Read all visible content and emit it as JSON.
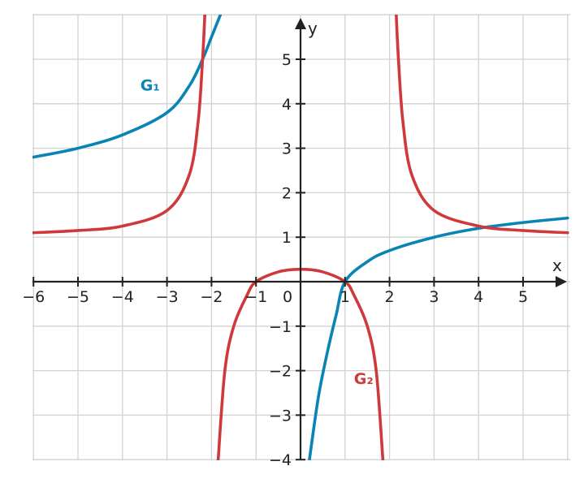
{
  "chart_data": {
    "type": "line",
    "xlabel": "x",
    "ylabel": "y",
    "xlim": [
      -6,
      6
    ],
    "ylim": [
      -4,
      6
    ],
    "grid": true,
    "x_ticks": [
      {
        "value": -6,
        "label": "−6"
      },
      {
        "value": -5,
        "label": "−5"
      },
      {
        "value": -4,
        "label": "−4"
      },
      {
        "value": -3,
        "label": "−3"
      },
      {
        "value": -2,
        "label": "−2"
      },
      {
        "value": -1,
        "label": "−1"
      },
      {
        "value": 1,
        "label": "1"
      },
      {
        "value": 2,
        "label": "2"
      },
      {
        "value": 3,
        "label": "3"
      },
      {
        "value": 4,
        "label": "4"
      },
      {
        "value": 5,
        "label": "5"
      }
    ],
    "y_ticks": [
      {
        "value": 5,
        "label": "5"
      },
      {
        "value": 4,
        "label": "4"
      },
      {
        "value": 3,
        "label": "3"
      },
      {
        "value": 2,
        "label": "2"
      },
      {
        "value": 1,
        "label": "1"
      },
      {
        "value": -1,
        "label": "−1"
      },
      {
        "value": -2,
        "label": "−2"
      },
      {
        "value": -3,
        "label": "−3"
      },
      {
        "value": -4,
        "label": "−4"
      }
    ],
    "origin_label": "0",
    "series": [
      {
        "name": "G₁",
        "color": "#0a84b4",
        "segments": [
          [
            [
              -6,
              2.8
            ],
            [
              -5,
              3.0
            ],
            [
              -4,
              3.3
            ],
            [
              -3,
              3.8
            ],
            [
              -2.5,
              4.4
            ],
            [
              -2.2,
              5.0
            ],
            [
              -2.0,
              5.5
            ],
            [
              -1.8,
              6.0
            ]
          ],
          [
            [
              0.2,
              -4.0
            ],
            [
              0.4,
              -2.6
            ],
            [
              0.6,
              -1.6
            ],
            [
              0.8,
              -0.75
            ],
            [
              1.0,
              0.0
            ],
            [
              1.5,
              0.45
            ],
            [
              2.0,
              0.7
            ],
            [
              3.0,
              1.0
            ],
            [
              4.0,
              1.2
            ],
            [
              5.0,
              1.33
            ],
            [
              6.0,
              1.43
            ]
          ]
        ]
      },
      {
        "name": "G₂",
        "color": "#d0393c",
        "segments": [
          [
            [
              -6,
              1.1
            ],
            [
              -5,
              1.15
            ],
            [
              -4,
              1.25
            ],
            [
              -3,
              1.6
            ],
            [
              -2.5,
              2.4
            ],
            [
              -2.3,
              3.6
            ],
            [
              -2.2,
              5.0
            ],
            [
              -2.15,
              6.0
            ]
          ],
          [
            [
              -1.85,
              -4.0
            ],
            [
              -1.7,
              -2.0
            ],
            [
              -1.5,
              -1.0
            ],
            [
              -1.2,
              -0.3
            ],
            [
              -1.0,
              0.0
            ],
            [
              -0.5,
              0.22
            ],
            [
              0.0,
              0.28
            ],
            [
              0.5,
              0.22
            ],
            [
              1.0,
              0.0
            ],
            [
              1.2,
              -0.3
            ],
            [
              1.5,
              -1.0
            ],
            [
              1.7,
              -2.0
            ],
            [
              1.85,
              -4.0
            ]
          ],
          [
            [
              2.15,
              6.0
            ],
            [
              2.2,
              5.0
            ],
            [
              2.3,
              3.6
            ],
            [
              2.5,
              2.4
            ],
            [
              3.0,
              1.6
            ],
            [
              4.0,
              1.25
            ],
            [
              5.0,
              1.15
            ],
            [
              6.0,
              1.1
            ]
          ]
        ]
      }
    ],
    "annotations": [
      {
        "text": "G₁",
        "series": "G₁",
        "x": -3.6,
        "y": 4.3
      },
      {
        "text": "G₂",
        "series": "G₂",
        "x": 1.2,
        "y": -2.3
      }
    ]
  }
}
